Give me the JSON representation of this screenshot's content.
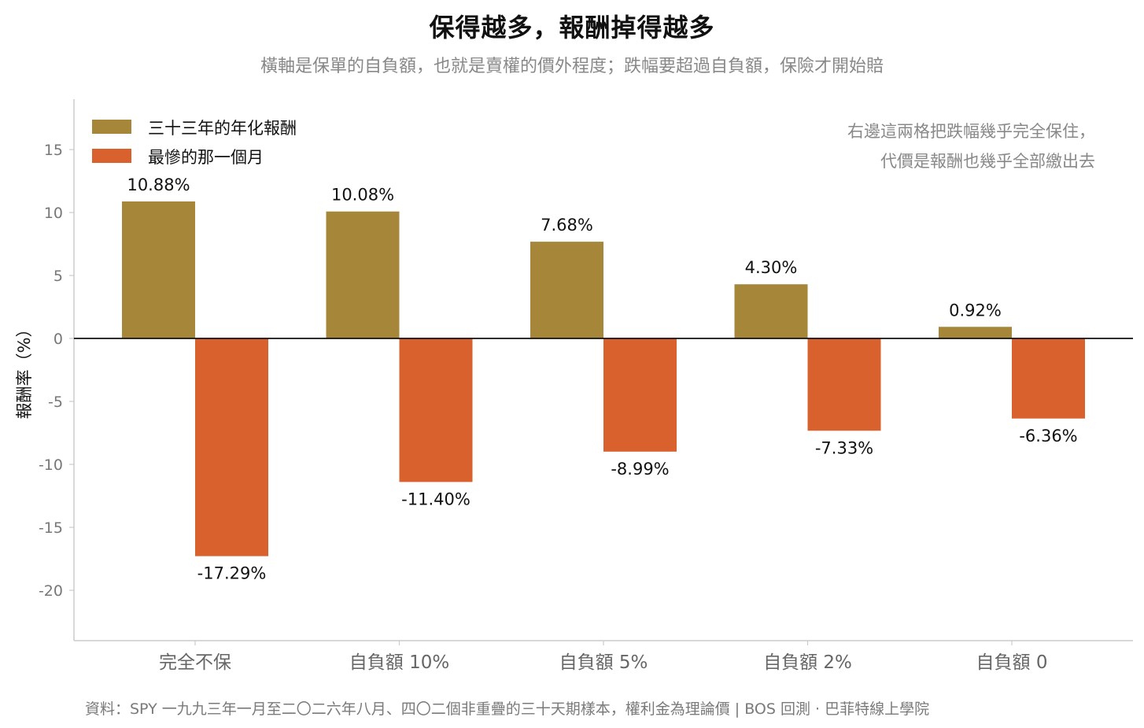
{
  "colors": {
    "series_0": "#A6873A",
    "series_1": "#D9612E",
    "axis": "#cccccc",
    "tick_text": "#777777",
    "zero_line": "#111111",
    "annotation_text": "#888888",
    "data_label": "#111111"
  },
  "chart_data": {
    "type": "bar",
    "title": "保得越多，報酬掉得越多",
    "subtitle": "橫軸是保單的自負額，也就是賣權的價外程度；跌幅要超過自負額，保險才開始賠",
    "source": "資料：SPY 一九九三年一月至二〇二六年八月、四〇二個非重疊的三十天期樣本，權利金為理論價 | BOS 回測 ·  巴菲特線上學院",
    "xlabel": "",
    "ylabel": "報酬率（%）",
    "categories": [
      "完全不保",
      "自負額 10%",
      "自負額 5%",
      "自負額 2%",
      "自負額 0"
    ],
    "series": [
      {
        "name": "三十三年的年化報酬",
        "values": [
          10.88,
          10.08,
          7.68,
          4.3,
          0.92
        ],
        "labels": [
          "10.88%",
          "10.08%",
          "7.68%",
          "4.30%",
          "0.92%"
        ]
      },
      {
        "name": "最慘的那一個月",
        "values": [
          -17.29,
          -11.4,
          -8.99,
          -7.33,
          -6.36
        ],
        "labels": [
          "-17.29%",
          "-11.40%",
          "-8.99%",
          "-7.33%",
          "-6.36%"
        ]
      }
    ],
    "yticks": [
      15,
      10,
      5,
      0,
      -5,
      -10,
      -15,
      -20
    ],
    "ytick_labels": [
      "15",
      "10",
      "5",
      "0",
      "-5",
      "-10",
      "-15",
      "-20"
    ],
    "ylim": [
      -24,
      19
    ],
    "grid": false,
    "legend_position": "top-left",
    "annotation": {
      "lines": [
        "右邊這兩格把跌幅幾乎完全保住，",
        "代價是報酬也幾乎全部繳出去"
      ]
    }
  }
}
